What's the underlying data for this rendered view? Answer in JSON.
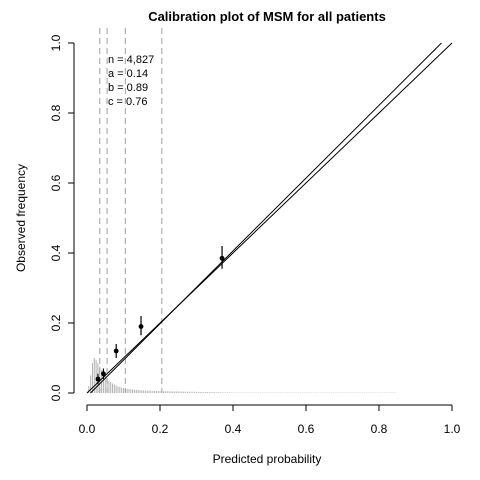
{
  "chart_data": {
    "type": "scatter",
    "title": "Calibration plot of MSM for all patients",
    "xlabel": "Predicted probability",
    "ylabel": "Observed frequency",
    "xlim": [
      0,
      1
    ],
    "ylim": [
      0,
      1
    ],
    "x_ticks": [
      "0.0",
      "0.2",
      "0.4",
      "0.6",
      "0.8",
      "1.0"
    ],
    "y_ticks": [
      "0.0",
      "0.2",
      "0.4",
      "0.6",
      "0.8",
      "1.0"
    ],
    "grid": false,
    "reference_line": {
      "from": [
        0,
        0
      ],
      "to": [
        1,
        1
      ]
    },
    "calibration_line": {
      "intercept": -0.01,
      "slope": 1.04,
      "x_range": [
        0,
        1
      ]
    },
    "points": [
      {
        "x": 0.03,
        "y": 0.04,
        "lo": 0.025,
        "hi": 0.055
      },
      {
        "x": 0.045,
        "y": 0.055,
        "lo": 0.04,
        "hi": 0.07
      },
      {
        "x": 0.08,
        "y": 0.12,
        "lo": 0.1,
        "hi": 0.14
      },
      {
        "x": 0.148,
        "y": 0.19,
        "lo": 0.165,
        "hi": 0.22
      },
      {
        "x": 0.37,
        "y": 0.385,
        "lo": 0.355,
        "hi": 0.42
      }
    ],
    "group_cutpoints": [
      0.035,
      0.055,
      0.105,
      0.205
    ],
    "spike_histogram": {
      "bin_width": 0.005,
      "x_start": 0.005,
      "heights": [
        0.02,
        0.05,
        0.085,
        0.1,
        0.095,
        0.085,
        0.075,
        0.065,
        0.055,
        0.048,
        0.042,
        0.036,
        0.031,
        0.027,
        0.024,
        0.021,
        0.019,
        0.017,
        0.015,
        0.014,
        0.013,
        0.012,
        0.011,
        0.0105,
        0.01,
        0.0095,
        0.009,
        0.0085,
        0.008,
        0.0075,
        0.0072,
        0.007,
        0.0068,
        0.0066,
        0.0064,
        0.0062,
        0.006,
        0.0058,
        0.0056,
        0.0054,
        0.0052,
        0.005,
        0.0049,
        0.0048,
        0.0047,
        0.0046,
        0.0045,
        0.0044,
        0.0043,
        0.0042,
        0.0041,
        0.004,
        0.0039,
        0.0038,
        0.0037,
        0.0036,
        0.0035,
        0.0034,
        0.0033,
        0.0032,
        0.0031,
        0.003,
        0.0029,
        0.0028,
        0.0027,
        0.0026,
        0.0025,
        0.0024,
        0.0023,
        0.0022,
        0.0021,
        0.002,
        0.0019,
        0.0018,
        0.0017,
        0.0016,
        0.0015,
        0.0014,
        0.0013,
        0.0012,
        0.0011,
        0.0011,
        0.0011,
        0.0011,
        0.0011,
        0.0011,
        0.0011,
        0.0011,
        0.0011,
        0.0011,
        0.0011,
        0.0011,
        0.0011,
        0.0011,
        0.0011,
        0.0011,
        0.0011,
        0.0011,
        0.0011,
        0.0011,
        0.0011,
        0.0011,
        0.0011,
        0.0011,
        0.0011,
        0.0011,
        0.0011,
        0.0011,
        0.0011,
        0.0011,
        0.0011,
        0.0011,
        0.0011,
        0.0011,
        0.0011,
        0.0011,
        0.0011,
        0.0011,
        0.0011,
        0.0011,
        0.0011,
        0.0011,
        0.0011,
        0.0011,
        0.0011,
        0.0011,
        0.0011,
        0.0011,
        0.0011,
        0.0011,
        0.0011,
        0.0011,
        0.0011,
        0.0011,
        0.0011,
        0.0011,
        0.0011,
        0.0011,
        0.0011,
        0.0011,
        0.0011,
        0.0011,
        0.0011,
        0.0011,
        0.0011,
        0.0011,
        0.0011,
        0.0011,
        0.0011,
        0.0011,
        0.0011,
        0.0011,
        0.0011,
        0.0011,
        0.0011,
        0.0011,
        0.0011,
        0.0011,
        0.0011,
        0.0011,
        0.0011,
        0.0011,
        0.0011,
        0.0011,
        0.0011,
        0.0011,
        0.0011,
        0.0011,
        0.0011
      ]
    },
    "stats": [
      "n = 4,827",
      "a = 0.14",
      "b = 0.89",
      "c = 0.76"
    ]
  },
  "colors": {
    "line": "#000000",
    "cutpoint": "#a0a0a0",
    "histogram": "#b0b0b0"
  }
}
